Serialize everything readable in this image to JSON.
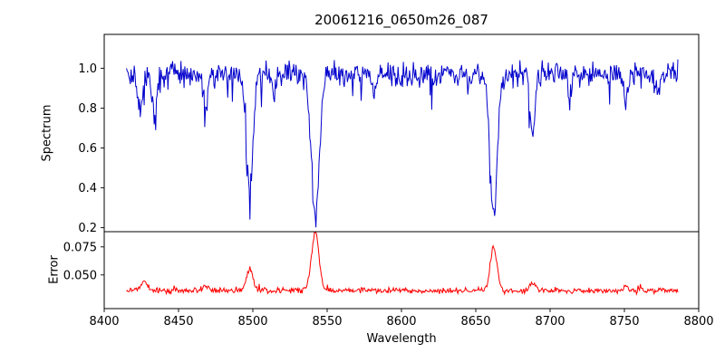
{
  "chart_data": {
    "type": "line",
    "title": "20061216_0650m26_087",
    "xlabel": "Wavelength",
    "grid": false,
    "legend": null,
    "x_range": [
      8400,
      8800
    ],
    "x_data_range": [
      8415,
      8786
    ],
    "xticks": [
      8400,
      8450,
      8500,
      8550,
      8600,
      8650,
      8700,
      8750,
      8800
    ],
    "xticklabels": [
      "8400",
      "8450",
      "8500",
      "8550",
      "8600",
      "8650",
      "8700",
      "8750",
      "8800"
    ],
    "noise_seed": 42,
    "panels": [
      {
        "name": "spectrum",
        "ylabel": "Spectrum",
        "color": "#0000cc",
        "ylim": [
          0.18,
          1.17
        ],
        "yticks": [
          0.2,
          0.4,
          0.6,
          0.8,
          1.0
        ],
        "yticklabels": [
          "0.2",
          "0.4",
          "0.6",
          "0.8",
          "1.0"
        ],
        "continuum": 0.97,
        "noise_sigma": 0.03,
        "spike_prob": 0.05,
        "spike_max": 0.15,
        "absorption_lines": [
          {
            "center": 8424,
            "depth": 0.2,
            "width": 1.5
          },
          {
            "center": 8434,
            "depth": 0.25,
            "width": 1.5
          },
          {
            "center": 8468,
            "depth": 0.2,
            "width": 1.5
          },
          {
            "center": 8498,
            "depth": 0.57,
            "width": 2.2
          },
          {
            "center": 8514,
            "depth": 0.12,
            "width": 1.2
          },
          {
            "center": 8542,
            "depth": 0.72,
            "width": 2.6
          },
          {
            "center": 8582,
            "depth": 0.1,
            "width": 1.2
          },
          {
            "center": 8662,
            "depth": 0.72,
            "width": 2.4
          },
          {
            "center": 8688,
            "depth": 0.3,
            "width": 1.6
          },
          {
            "center": 8713,
            "depth": 0.12,
            "width": 1.2
          },
          {
            "center": 8751,
            "depth": 0.15,
            "width": 1.3
          },
          {
            "center": 8773,
            "depth": 0.12,
            "width": 1.2
          }
        ]
      },
      {
        "name": "error",
        "ylabel": "Error",
        "color": "#ff0000",
        "ylim": [
          0.02,
          0.0885
        ],
        "yticks": [
          0.05,
          0.075
        ],
        "yticklabels": [
          "0.050",
          "0.075"
        ],
        "baseline": 0.036,
        "noise_sigma": 0.0012,
        "spike_prob": 0.04,
        "spike_max": 0.004,
        "emission_peaks": [
          {
            "center": 8427,
            "height": 0.008,
            "width": 2.5
          },
          {
            "center": 8468,
            "height": 0.004,
            "width": 2.0
          },
          {
            "center": 8498,
            "height": 0.019,
            "width": 2.2
          },
          {
            "center": 8542,
            "height": 0.052,
            "width": 2.5
          },
          {
            "center": 8662,
            "height": 0.038,
            "width": 2.3
          },
          {
            "center": 8688,
            "height": 0.007,
            "width": 1.6
          },
          {
            "center": 8751,
            "height": 0.004,
            "width": 1.5
          }
        ]
      }
    ]
  }
}
